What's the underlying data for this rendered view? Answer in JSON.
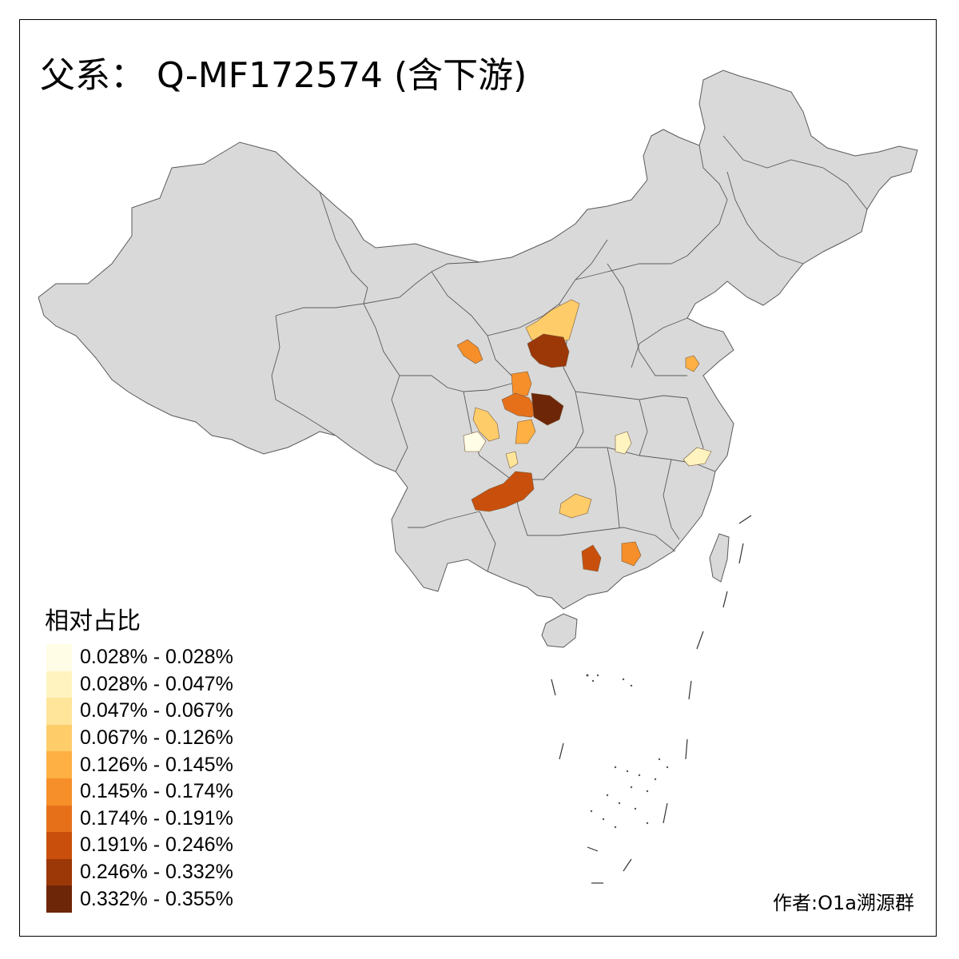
{
  "title": "父系： Q-MF172574 (含下游)",
  "legend": {
    "title": "相对占比",
    "items": [
      {
        "label": "0.028% - 0.028%",
        "color": "#fffde6"
      },
      {
        "label": "0.028% - 0.047%",
        "color": "#fff4c0"
      },
      {
        "label": "0.047% - 0.067%",
        "color": "#fee59a"
      },
      {
        "label": "0.067% - 0.126%",
        "color": "#fecd6a"
      },
      {
        "label": "0.126% - 0.145%",
        "color": "#feb044"
      },
      {
        "label": "0.145% - 0.174%",
        "color": "#f68f2a"
      },
      {
        "label": "0.174% - 0.191%",
        "color": "#e6701a"
      },
      {
        "label": "0.191% - 0.246%",
        "color": "#c9500c"
      },
      {
        "label": "0.246% - 0.332%",
        "color": "#9c3708"
      },
      {
        "label": "0.332% - 0.355%",
        "color": "#6e2608"
      }
    ]
  },
  "credit": "作者:O1a溯源群",
  "colors": {
    "land": "#d9d9d9",
    "border": "#5a5a5a",
    "frame": "#000000",
    "background": "#ffffff"
  }
}
